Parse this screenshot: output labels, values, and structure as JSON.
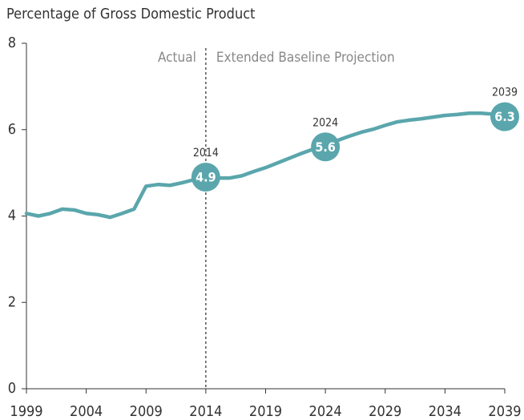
{
  "chart_data": {
    "type": "line",
    "y_label": "Percentage of Gross Domestic Product",
    "x": [
      1999,
      2000,
      2001,
      2002,
      2003,
      2004,
      2005,
      2006,
      2007,
      2008,
      2009,
      2010,
      2011,
      2012,
      2013,
      2014,
      2015,
      2016,
      2017,
      2018,
      2019,
      2020,
      2021,
      2022,
      2023,
      2024,
      2025,
      2026,
      2027,
      2028,
      2029,
      2030,
      2031,
      2032,
      2033,
      2034,
      2035,
      2036,
      2037,
      2038,
      2039
    ],
    "values": [
      4.06,
      4.0,
      4.06,
      4.16,
      4.14,
      4.06,
      4.03,
      3.97,
      4.06,
      4.16,
      4.69,
      4.73,
      4.71,
      4.77,
      4.84,
      4.9,
      4.88,
      4.88,
      4.93,
      5.03,
      5.12,
      5.23,
      5.34,
      5.45,
      5.55,
      5.6,
      5.75,
      5.85,
      5.94,
      6.01,
      6.1,
      6.18,
      6.22,
      6.25,
      6.29,
      6.33,
      6.35,
      6.38,
      6.38,
      6.36,
      6.3
    ],
    "color": "#5aa6ac",
    "xlim": [
      1999,
      2039
    ],
    "xticks": [
      1999,
      2004,
      2009,
      2014,
      2019,
      2024,
      2029,
      2034,
      2039
    ],
    "ylim": [
      0,
      8
    ],
    "yticks": [
      0,
      2,
      4,
      6,
      8
    ],
    "highlights": [
      {
        "x": 2014,
        "value": 4.9
      },
      {
        "x": 2024,
        "value": 5.6
      },
      {
        "x": 2039,
        "value": 6.3
      }
    ],
    "divider": {
      "x": 2014,
      "left_label": "Actual",
      "right_label": "Extended Baseline Projection"
    }
  }
}
